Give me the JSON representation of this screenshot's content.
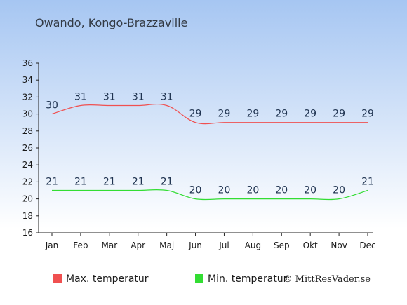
{
  "chart_data": {
    "type": "line",
    "title": "Owando, Kongo-Brazzaville",
    "categories": [
      "Jan",
      "Feb",
      "Mar",
      "Apr",
      "Maj",
      "Jun",
      "Jul",
      "Aug",
      "Sep",
      "Okt",
      "Nov",
      "Dec"
    ],
    "series": [
      {
        "name": "Max. temperatur",
        "color": "#f05050",
        "values": [
          30,
          31,
          31,
          31,
          31,
          29,
          29,
          29,
          29,
          29,
          29,
          29
        ]
      },
      {
        "name": "Min. temperatur",
        "color": "#33dd33",
        "values": [
          21,
          21,
          21,
          21,
          21,
          20,
          20,
          20,
          20,
          20,
          20,
          21
        ]
      }
    ],
    "ylim": [
      16,
      36
    ],
    "yticks": [
      16,
      18,
      20,
      22,
      24,
      26,
      28,
      30,
      32,
      34,
      36
    ],
    "grid": false,
    "legend_position": "bottom"
  },
  "copyright": "© MittResVader.se",
  "colors": {
    "bg_top": "#a6c6f2",
    "bg_bottom": "#ffffff"
  }
}
